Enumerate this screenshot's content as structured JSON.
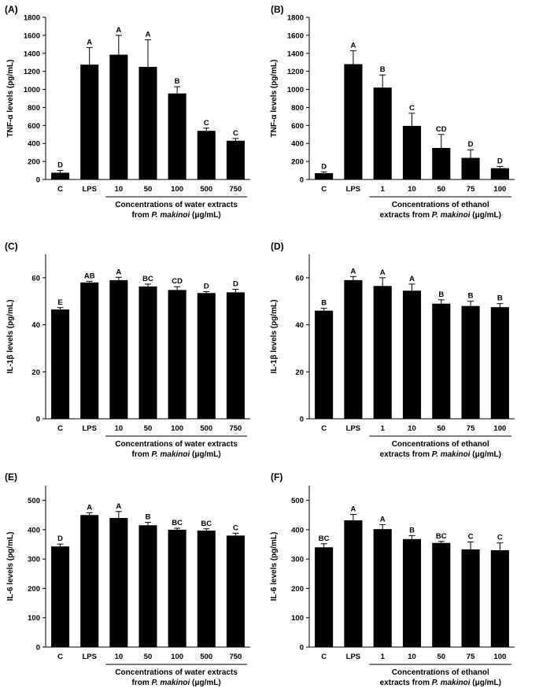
{
  "chart_data": [
    {
      "type": "bar",
      "panel_label": "(A)",
      "ylabel": "TNF-α levels (pg/mL)",
      "xlabel_line1": "Concentrations of water extracts",
      "xlabel_line2_prefix": "from ",
      "xlabel_line2_italic": "P. makinoi",
      "xlabel_line2_suffix": " (μg/mL)",
      "categories": [
        "C",
        "LPS",
        "10",
        "50",
        "100",
        "500",
        "750"
      ],
      "values": [
        75,
        1275,
        1385,
        1250,
        955,
        540,
        430
      ],
      "errors": [
        25,
        190,
        215,
        300,
        75,
        30,
        25
      ],
      "letters": [
        "D",
        "A",
        "A",
        "A",
        "B",
        "C",
        "C"
      ],
      "ylim": [
        0,
        1800
      ],
      "yticks": [
        0,
        200,
        400,
        600,
        800,
        1000,
        1200,
        1400,
        1600,
        1800
      ]
    },
    {
      "type": "bar",
      "panel_label": "(B)",
      "ylabel": "TNF-α levels (pg/mL)",
      "xlabel_line1": "Concentrations of ethanol",
      "xlabel_line2_prefix": "extracts from ",
      "xlabel_line2_italic": "P. makinoi",
      "xlabel_line2_suffix": " (μg/mL)",
      "categories": [
        "C",
        "LPS",
        "1",
        "10",
        "50",
        "75",
        "100"
      ],
      "values": [
        70,
        1280,
        1020,
        595,
        350,
        240,
        125
      ],
      "errors": [
        15,
        150,
        140,
        140,
        150,
        90,
        20
      ],
      "letters": [
        "D",
        "A",
        "B",
        "C",
        "CD",
        "D",
        "D"
      ],
      "ylim": [
        0,
        1800
      ],
      "yticks": [
        0,
        200,
        400,
        600,
        800,
        1000,
        1200,
        1400,
        1600,
        1800
      ]
    },
    {
      "type": "bar",
      "panel_label": "(C)",
      "ylabel": "IL-1β levels (pg/mL)",
      "xlabel_line1": "Concentrations of water extracts",
      "xlabel_line2_prefix": "from ",
      "xlabel_line2_italic": "P. makinoi",
      "xlabel_line2_suffix": " (μg/mL)",
      "categories": [
        "C",
        "LPS",
        "10",
        "50",
        "100",
        "500",
        "750"
      ],
      "values": [
        46.5,
        58,
        59,
        56.3,
        54.8,
        53.5,
        53.8
      ],
      "errors": [
        0.8,
        0.5,
        1.2,
        1.0,
        1.4,
        0.6,
        1.3
      ],
      "letters": [
        "E",
        "AB",
        "A",
        "BC",
        "CD",
        "D",
        "D"
      ],
      "ylim": [
        0,
        70
      ],
      "yticks": [
        0,
        20,
        40,
        60
      ]
    },
    {
      "type": "bar",
      "panel_label": "(D)",
      "ylabel": "IL-1β levels (pg/mL)",
      "xlabel_line1": "Concentrations of ethanol",
      "xlabel_line2_prefix": "extracts from ",
      "xlabel_line2_italic": "P. makinoi",
      "xlabel_line2_suffix": " (μg/mL)",
      "categories": [
        "C",
        "LPS",
        "1",
        "10",
        "50",
        "75",
        "100"
      ],
      "values": [
        46,
        59,
        56.5,
        54.5,
        49,
        48,
        47.5
      ],
      "errors": [
        1.0,
        1.5,
        3.5,
        2.8,
        1.6,
        2.0,
        1.5
      ],
      "letters": [
        "B",
        "A",
        "A",
        "A",
        "B",
        "B",
        "B"
      ],
      "ylim": [
        0,
        70
      ],
      "yticks": [
        0,
        20,
        40,
        60
      ]
    },
    {
      "type": "bar",
      "panel_label": "(E)",
      "ylabel": "IL-6 levels (pg/mL)",
      "xlabel_line1": "Concentrations of water extracts",
      "xlabel_line2_prefix": "from ",
      "xlabel_line2_italic": "P. makinoi",
      "xlabel_line2_suffix": " (μg/mL)",
      "categories": [
        "C",
        "LPS",
        "10",
        "50",
        "100",
        "500",
        "750"
      ],
      "values": [
        343,
        450,
        440,
        415,
        400,
        397,
        380
      ],
      "errors": [
        8,
        8,
        22,
        10,
        5,
        6,
        8
      ],
      "letters": [
        "D",
        "A",
        "A",
        "B",
        "BC",
        "BC",
        "C"
      ],
      "ylim": [
        0,
        550
      ],
      "yticks": [
        0,
        100,
        200,
        300,
        400,
        500
      ]
    },
    {
      "type": "bar",
      "panel_label": "(F)",
      "ylabel": "IL-6 levels (pg/mL)",
      "xlabel_line1": "Concentrations of ethanol",
      "xlabel_line2_prefix": "extracts from ",
      "xlabel_line2_italic": "P. makinoi",
      "xlabel_line2_suffix": " (μg/mL)",
      "categories": [
        "C",
        "LPS",
        "1",
        "10",
        "50",
        "75",
        "100"
      ],
      "values": [
        340,
        432,
        402,
        368,
        355,
        333,
        330
      ],
      "errors": [
        12,
        20,
        15,
        12,
        5,
        25,
        25
      ],
      "letters": [
        "BC",
        "A",
        "A",
        "B",
        "BC",
        "C",
        "C"
      ],
      "ylim": [
        0,
        550
      ],
      "yticks": [
        0,
        100,
        200,
        300,
        400,
        500
      ]
    }
  ]
}
